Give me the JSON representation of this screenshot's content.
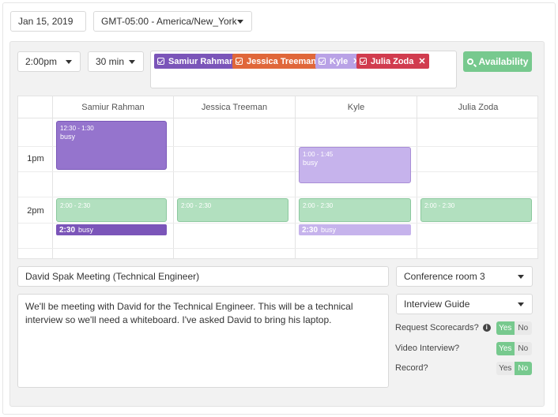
{
  "header": {
    "date": "Jan 15, 2019",
    "timezone": "GMT-05:00 - America/New_York"
  },
  "controls": {
    "start_time": "2:00pm",
    "duration": "30 min",
    "availability_label": "Availability"
  },
  "attendees": [
    {
      "name": "Samiur Rahman",
      "color": "#7b55b9"
    },
    {
      "name": "Jessica Treeman",
      "color": "#e0673a"
    },
    {
      "name": "Kyle",
      "color": "#b9a2e6"
    },
    {
      "name": "Julia Zoda",
      "color": "#d13c4f"
    }
  ],
  "calendar": {
    "columns": [
      "Samiur Rahman",
      "Jessica Treeman",
      "Kyle",
      "Julia Zoda"
    ],
    "time_labels": [
      "1pm",
      "2pm"
    ],
    "events": {
      "samiur_busy": {
        "time": "12:30 - 1:30",
        "label": "busy"
      },
      "kyle_busy": {
        "time": "1:00 - 1:45",
        "label": "busy"
      },
      "proposed": {
        "time": "2:00 - 2:30"
      },
      "samiur_conflict": {
        "time": "2:30",
        "label": "busy"
      },
      "kyle_conflict": {
        "time": "2:30",
        "label": "busy"
      }
    }
  },
  "meeting": {
    "title": "David Spak Meeting (Technical Engineer)",
    "room": "Conference room 3",
    "guide": "Interview Guide",
    "description": "We'll be meeting with David for the Technical Engineer. This will be a technical interview so we'll need a whiteboard. I've asked David to bring his laptop."
  },
  "options": {
    "scorecards": {
      "label": "Request Scorecards?",
      "value": "Yes"
    },
    "video": {
      "label": "Video Interview?",
      "value": "Yes"
    },
    "record": {
      "label": "Record?",
      "value": "No"
    },
    "yes_label": "Yes",
    "no_label": "No",
    "info_glyph": "i"
  },
  "colors": {
    "green": "#77c98e",
    "purple": "#9574cd",
    "lilac": "#c6b3ec",
    "light_green": "#b2e0bf"
  }
}
